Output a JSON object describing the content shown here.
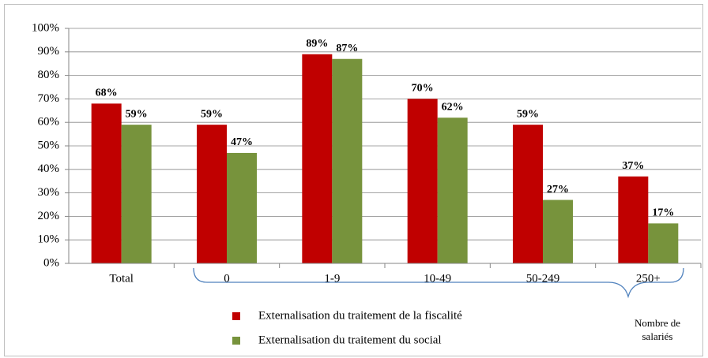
{
  "chart_data": {
    "type": "bar",
    "categories": [
      "Total",
      "0",
      "1-9",
      "10-49",
      "50-249",
      "250+"
    ],
    "series": [
      {
        "name": "Externalisation du traitement de la fiscalité",
        "color": "#c00000",
        "values": [
          68,
          59,
          89,
          70,
          59,
          37
        ],
        "value_labels": [
          "68%",
          "59%",
          "89%",
          "70%",
          "59%",
          "37%"
        ]
      },
      {
        "name": "Externalisation du traitement du social",
        "color": "#77933c",
        "values": [
          59,
          47,
          87,
          62,
          27,
          17
        ],
        "value_labels": [
          "59%",
          "47%",
          "87%",
          "62%",
          "27%",
          "17%"
        ]
      }
    ],
    "ylim": [
      0,
      100
    ],
    "yticks": [
      {
        "value": 0,
        "label": "0%"
      },
      {
        "value": 10,
        "label": "10%"
      },
      {
        "value": 20,
        "label": "20%"
      },
      {
        "value": 30,
        "label": "30%"
      },
      {
        "value": 40,
        "label": "40%"
      },
      {
        "value": 50,
        "label": "50%"
      },
      {
        "value": 60,
        "label": "60%"
      },
      {
        "value": 70,
        "label": "70%"
      },
      {
        "value": 80,
        "label": "80%"
      },
      {
        "value": 90,
        "label": "90%"
      },
      {
        "value": 100,
        "label": "100%"
      }
    ],
    "grid": true,
    "annotation_lines": [
      "Nombre de",
      "salariés"
    ]
  }
}
